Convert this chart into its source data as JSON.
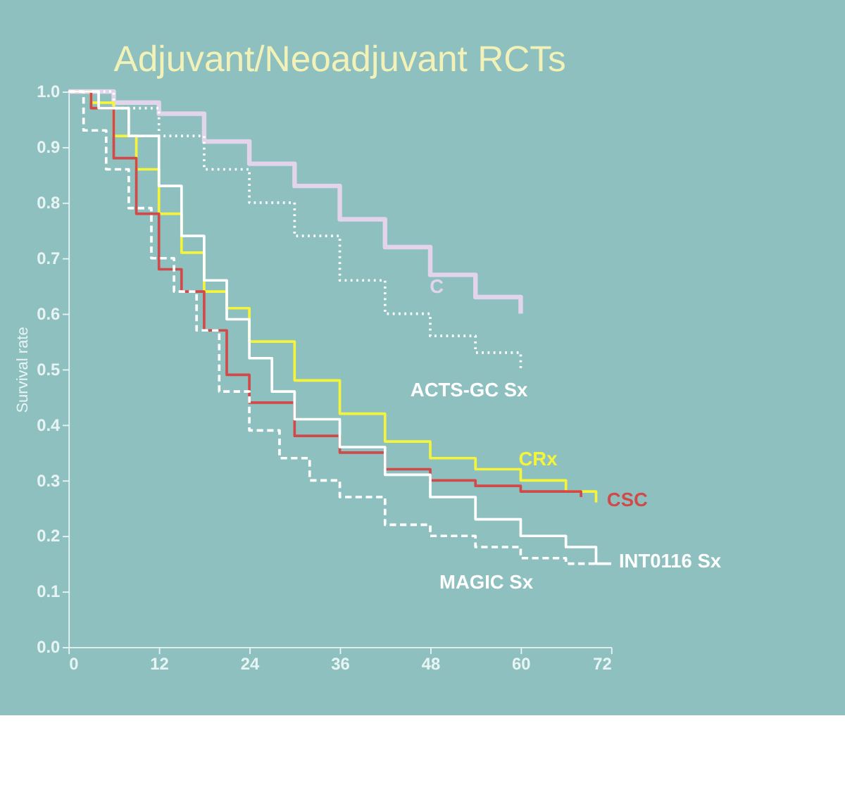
{
  "chart_data": {
    "type": "step",
    "title": "Adjuvant/Neoadjuvant RCTs",
    "ylabel": "Survival rate",
    "xlim": [
      0,
      72
    ],
    "xticks": [
      0,
      12,
      24,
      36,
      48,
      60,
      72
    ],
    "ylim": [
      0,
      1
    ],
    "yticks": [
      {
        "value": 0,
        "label": "0.0"
      },
      0.1,
      0.2,
      0.3,
      0.4,
      0.5,
      0.6,
      0.7,
      0.8,
      0.9,
      {
        "value": 1,
        "label": "1.0"
      }
    ],
    "grid": false,
    "marker": "none",
    "series": [
      {
        "name": "C",
        "color": "#e2d4ea",
        "line_style": "solid",
        "x": [
          0,
          6,
          12,
          18,
          24,
          30,
          36,
          42,
          48,
          54,
          60
        ],
        "values": [
          1.0,
          0.98,
          0.96,
          0.91,
          0.87,
          0.83,
          0.77,
          0.72,
          0.67,
          0.63,
          0.6
        ]
      },
      {
        "name": "ACTS-GC Sx",
        "color": "#ffffff",
        "line_style": "dotted",
        "x": [
          0,
          6,
          12,
          18,
          24,
          30,
          36,
          42,
          48,
          54,
          60
        ],
        "values": [
          1.0,
          0.97,
          0.92,
          0.86,
          0.8,
          0.74,
          0.66,
          0.6,
          0.56,
          0.53,
          0.5
        ]
      },
      {
        "name": "CRx",
        "color": "#f4f43c",
        "line_style": "solid",
        "x": [
          0,
          3,
          6,
          9,
          12,
          15,
          18,
          21,
          24,
          30,
          36,
          42,
          48,
          54,
          60,
          66,
          70
        ],
        "values": [
          1.0,
          0.98,
          0.92,
          0.86,
          0.78,
          0.71,
          0.64,
          0.61,
          0.55,
          0.48,
          0.42,
          0.37,
          0.34,
          0.32,
          0.3,
          0.28,
          0.26
        ]
      },
      {
        "name": "CSC",
        "color": "#d04a4a",
        "line_style": "solid",
        "x": [
          0,
          3,
          6,
          9,
          12,
          15,
          18,
          21,
          24,
          30,
          36,
          42,
          48,
          54,
          60,
          68
        ],
        "values": [
          1.0,
          0.97,
          0.88,
          0.78,
          0.68,
          0.64,
          0.57,
          0.49,
          0.44,
          0.38,
          0.35,
          0.32,
          0.3,
          0.29,
          0.28,
          0.27
        ]
      },
      {
        "name": "INT0116 Sx",
        "color": "#ffffff",
        "line_style": "solid",
        "x": [
          0,
          4,
          8,
          12,
          15,
          18,
          21,
          24,
          27,
          30,
          36,
          42,
          48,
          54,
          60,
          66,
          70,
          72
        ],
        "values": [
          1.0,
          0.97,
          0.92,
          0.83,
          0.74,
          0.66,
          0.59,
          0.52,
          0.46,
          0.41,
          0.36,
          0.31,
          0.27,
          0.23,
          0.2,
          0.18,
          0.15,
          0.15
        ]
      },
      {
        "name": "MAGIC Sx",
        "color": "#ffffff",
        "line_style": "dashed",
        "x": [
          0,
          2,
          5,
          8,
          11,
          14,
          17,
          20,
          24,
          28,
          32,
          36,
          42,
          48,
          54,
          60,
          66,
          70
        ],
        "values": [
          1.0,
          0.93,
          0.86,
          0.79,
          0.7,
          0.64,
          0.57,
          0.46,
          0.39,
          0.34,
          0.3,
          0.27,
          0.22,
          0.2,
          0.18,
          0.16,
          0.15,
          0.15
        ]
      }
    ]
  }
}
